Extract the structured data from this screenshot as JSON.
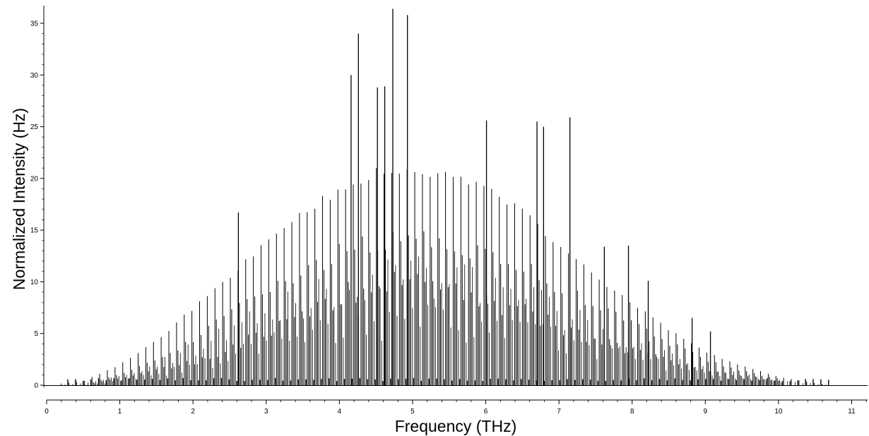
{
  "chart_data": {
    "type": "bar",
    "style": "stick-spectrum",
    "title": "",
    "xlabel": "Frequency (THz)",
    "ylabel": "Normalized Intensity (Hz)",
    "xlim": [
      0,
      11.5
    ],
    "ylim": [
      -0.2,
      36.5
    ],
    "x_ticks": [
      0,
      1,
      2,
      3,
      4,
      5,
      6,
      7,
      8,
      9,
      10,
      11
    ],
    "y_ticks": [
      0,
      5,
      10,
      15,
      20,
      25,
      30,
      35
    ],
    "grid": false,
    "legend": "none",
    "line_color": "#000000",
    "highlighted_peaks": [
      {
        "x": 2.62,
        "y": 16.7
      },
      {
        "x": 4.16,
        "y": 30.0
      },
      {
        "x": 4.26,
        "y": 34.0
      },
      {
        "x": 4.52,
        "y": 28.8
      },
      {
        "x": 4.62,
        "y": 28.9
      },
      {
        "x": 4.73,
        "y": 36.4
      },
      {
        "x": 4.93,
        "y": 35.8
      },
      {
        "x": 6.01,
        "y": 25.6
      },
      {
        "x": 6.7,
        "y": 25.5
      },
      {
        "x": 6.79,
        "y": 25.0
      },
      {
        "x": 7.15,
        "y": 25.9
      },
      {
        "x": 7.62,
        "y": 13.4
      },
      {
        "x": 7.95,
        "y": 13.5
      },
      {
        "x": 8.22,
        "y": 10.1
      },
      {
        "x": 8.82,
        "y": 6.5
      },
      {
        "x": 9.07,
        "y": 5.2
      }
    ],
    "envelope": {
      "upper": [
        [
          0.5,
          0.4
        ],
        [
          1.0,
          2.0
        ],
        [
          1.5,
          4.3
        ],
        [
          2.0,
          7.5
        ],
        [
          2.5,
          10.6
        ],
        [
          3.0,
          13.8
        ],
        [
          3.5,
          16.8
        ],
        [
          4.0,
          19.0
        ],
        [
          4.5,
          20.6
        ],
        [
          5.0,
          20.8
        ],
        [
          5.5,
          20.3
        ],
        [
          6.0,
          19.0
        ],
        [
          6.5,
          16.9
        ],
        [
          7.0,
          13.6
        ],
        [
          7.5,
          10.6
        ],
        [
          8.0,
          8.0
        ],
        [
          8.5,
          5.4
        ],
        [
          9.0,
          3.2
        ],
        [
          9.5,
          1.9
        ],
        [
          10.0,
          0.8
        ],
        [
          10.5,
          0.2
        ],
        [
          10.7,
          0.0
        ]
      ],
      "middle": [
        [
          1.0,
          1.2
        ],
        [
          1.5,
          2.6
        ],
        [
          2.0,
          4.5
        ],
        [
          2.5,
          7.2
        ],
        [
          3.0,
          9.2
        ],
        [
          3.5,
          11.3
        ],
        [
          4.0,
          13.2
        ],
        [
          4.5,
          14.3
        ],
        [
          5.0,
          14.6
        ],
        [
          5.5,
          13.9
        ],
        [
          6.0,
          13.3
        ],
        [
          6.5,
          12.0
        ],
        [
          7.0,
          9.6
        ],
        [
          7.5,
          7.8
        ],
        [
          8.0,
          6.0
        ],
        [
          8.5,
          4.2
        ],
        [
          9.0,
          2.5
        ],
        [
          9.5,
          1.4
        ],
        [
          10.0,
          0.6
        ]
      ],
      "lower": [
        [
          1.0,
          0.8
        ],
        [
          2.0,
          2.5
        ],
        [
          3.0,
          5.5
        ],
        [
          4.0,
          9.3
        ],
        [
          4.5,
          10.6
        ],
        [
          5.0,
          10.4
        ],
        [
          5.5,
          9.7
        ],
        [
          6.0,
          8.8
        ],
        [
          6.5,
          7.6
        ],
        [
          7.0,
          6.0
        ],
        [
          8.0,
          3.5
        ],
        [
          9.0,
          1.6
        ],
        [
          10.0,
          0.4
        ]
      ]
    },
    "line_spacing_thz": 0.105,
    "x_range_nonzero": [
      0.2,
      10.7
    ]
  }
}
